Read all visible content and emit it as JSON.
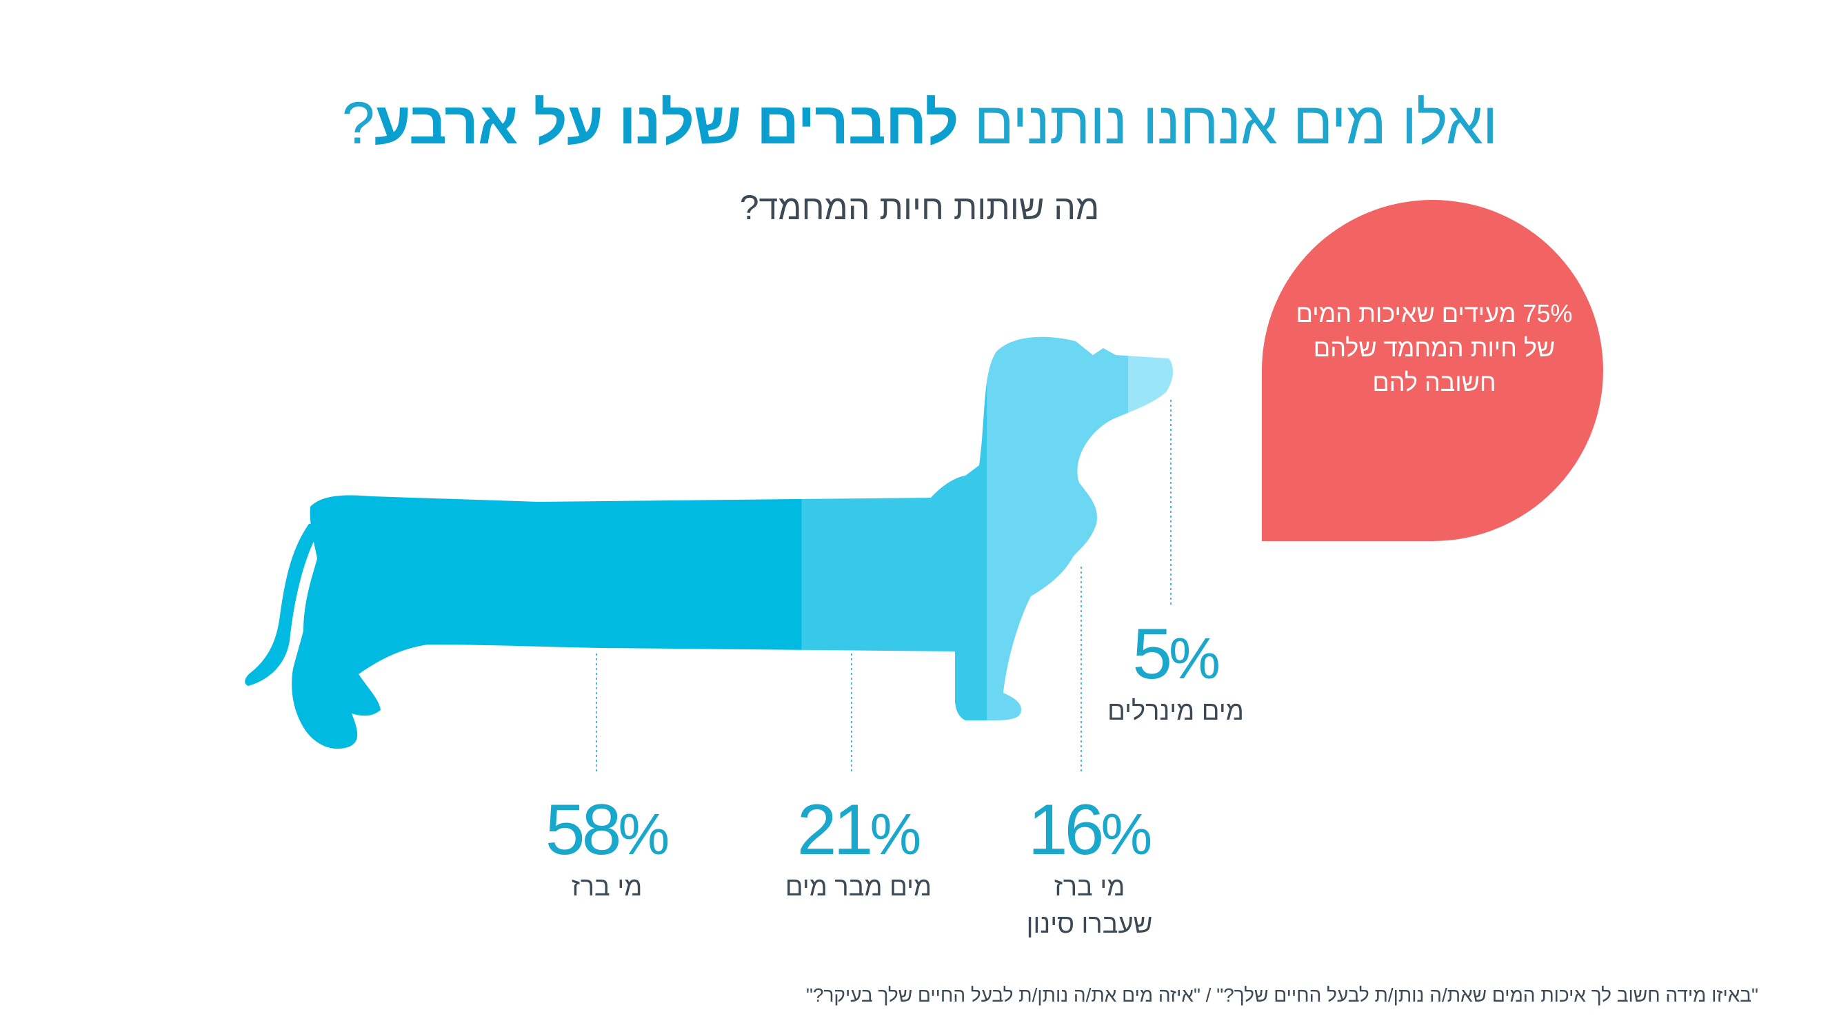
{
  "title": {
    "regular": "ואלו מים אנחנו נותנים",
    "bold": "לחברים שלנו על ארבע",
    "end": "?"
  },
  "subtitle": "מה שותות חיות המחמד?",
  "bubble": {
    "text": "75% מעידים שאיכות המים של חיות המחמד שלהם חשובה להם"
  },
  "colors": {
    "tap_water": "#00bae2",
    "water_bar": "#38c9ea",
    "filtered": "#6bd7f2",
    "mineral": "#9be5f8",
    "bubble": "#f26464",
    "value_text": "#1aa7cc",
    "label_text": "#3d4a55"
  },
  "chart_data": {
    "type": "pictorial-bar",
    "title": "מה שותות חיות המחמד?",
    "unit": "%",
    "categories": [
      "מי ברז",
      "מים מבר מים",
      "מי ברז שעברו סינון",
      "מים מינרלים"
    ],
    "values": [
      58,
      21,
      16,
      5
    ],
    "series": [
      {
        "name": "מי ברז",
        "value": 58,
        "value_text": "58",
        "label_lines": [
          "מי ברז"
        ],
        "color": "#00bae2"
      },
      {
        "name": "מים מבר מים",
        "value": 21,
        "value_text": "21",
        "label_lines": [
          "מים מבר מים"
        ],
        "color": "#38c9ea"
      },
      {
        "name": "מי ברז שעברו סינון",
        "value": 16,
        "value_text": "16",
        "label_lines": [
          "מי ברז",
          "שעברו סינון"
        ],
        "color": "#6bd7f2"
      },
      {
        "name": "מים מינרלים",
        "value": 5,
        "value_text": "5",
        "label_lines": [
          "מים מינרלים"
        ],
        "color": "#9be5f8"
      }
    ]
  },
  "footnote": "\"באיזו מידה חשוב לך איכות המים שאת/ה נותן/ת לבעל החיים שלך?\" / \"איזה מים את/ה נותן/ת לבעל החיים שלך בעיקר?\""
}
